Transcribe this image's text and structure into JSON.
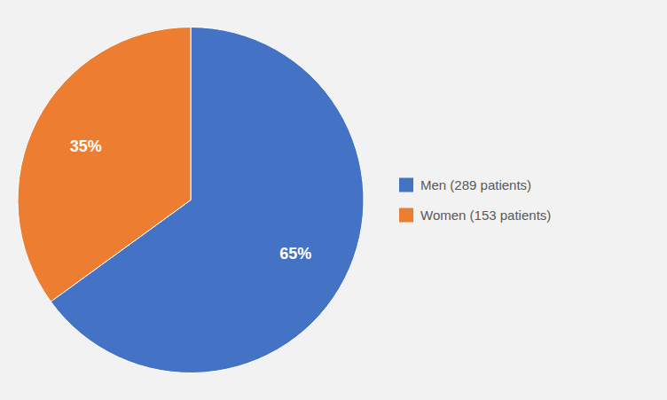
{
  "chart_data": {
    "type": "pie",
    "categories": [
      "Men (289 patients)",
      "Women (153 patients)"
    ],
    "values": [
      65,
      35
    ],
    "value_labels": [
      "65%",
      "35%"
    ],
    "colors": [
      "#4472C4",
      "#ED7D31"
    ],
    "data_labels": true,
    "legend": "right"
  }
}
